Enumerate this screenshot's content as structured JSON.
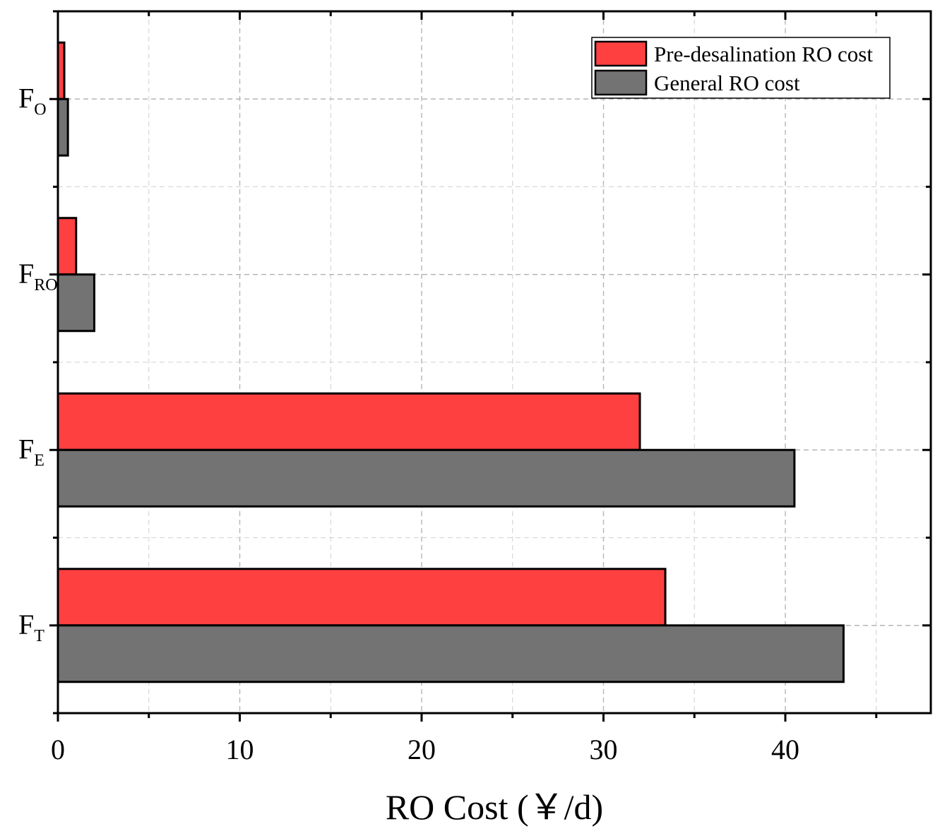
{
  "chart_data": {
    "type": "bar",
    "orientation": "horizontal",
    "categories": [
      {
        "main": "F",
        "sub": "O"
      },
      {
        "main": "F",
        "sub": "RO"
      },
      {
        "main": "F",
        "sub": "E"
      },
      {
        "main": "F",
        "sub": "T"
      }
    ],
    "series": [
      {
        "name": "Pre-desalination RO cost",
        "color": "#ff4040",
        "values": [
          0.35,
          1.0,
          32.0,
          33.4
        ]
      },
      {
        "name": "General RO cost",
        "color": "#737373",
        "values": [
          0.55,
          2.0,
          40.5,
          43.2
        ]
      }
    ],
    "xlabel": "RO Cost (￥/d)",
    "ylabel": "",
    "xlim": [
      0,
      48
    ],
    "xticks": [
      0,
      10,
      20,
      30,
      40
    ],
    "grid": true,
    "legend_position": "top-right"
  }
}
